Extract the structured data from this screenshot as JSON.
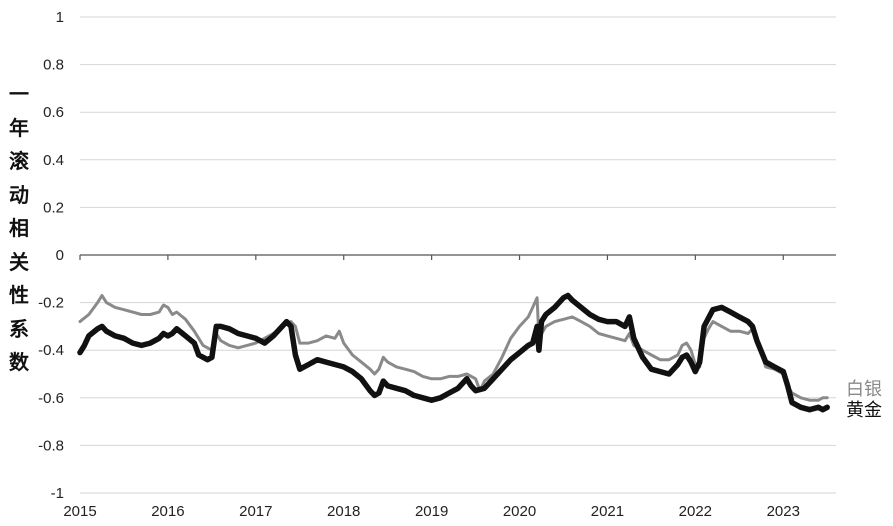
{
  "chart_data": {
    "type": "line",
    "ylabel": "一年滚动相关性系数",
    "xlabel": "",
    "title": "",
    "ylim": [
      -1,
      1
    ],
    "y_ticks": [
      "1",
      "0.8",
      "0.6",
      "0.4",
      "0.2",
      "0",
      "-0.2",
      "-0.4",
      "-0.6",
      "-0.8",
      "-1"
    ],
    "y_tick_values": [
      1,
      0.8,
      0.6,
      0.4,
      0.2,
      0,
      -0.2,
      -0.4,
      -0.6,
      -0.8,
      -1
    ],
    "x_ticks": [
      "2015",
      "2016",
      "2017",
      "2018",
      "2019",
      "2020",
      "2021",
      "2022",
      "2023"
    ],
    "x_tick_values": [
      2015,
      2016,
      2017,
      2018,
      2019,
      2020,
      2021,
      2022,
      2023
    ],
    "xlim": [
      2015,
      2023.6
    ],
    "grid": "horizontal",
    "legend": "end-of-line labels (right)",
    "series": [
      {
        "name": "白银",
        "color": "#8a8a8a",
        "points": [
          [
            2015.0,
            -0.28
          ],
          [
            2015.1,
            -0.25
          ],
          [
            2015.2,
            -0.2
          ],
          [
            2015.25,
            -0.17
          ],
          [
            2015.3,
            -0.2
          ],
          [
            2015.4,
            -0.22
          ],
          [
            2015.5,
            -0.23
          ],
          [
            2015.6,
            -0.24
          ],
          [
            2015.7,
            -0.25
          ],
          [
            2015.8,
            -0.25
          ],
          [
            2015.9,
            -0.24
          ],
          [
            2015.95,
            -0.21
          ],
          [
            2016.0,
            -0.22
          ],
          [
            2016.05,
            -0.25
          ],
          [
            2016.1,
            -0.24
          ],
          [
            2016.2,
            -0.27
          ],
          [
            2016.3,
            -0.32
          ],
          [
            2016.4,
            -0.38
          ],
          [
            2016.5,
            -0.4
          ],
          [
            2016.55,
            -0.33
          ],
          [
            2016.6,
            -0.36
          ],
          [
            2016.7,
            -0.38
          ],
          [
            2016.8,
            -0.39
          ],
          [
            2016.9,
            -0.38
          ],
          [
            2017.0,
            -0.37
          ],
          [
            2017.1,
            -0.35
          ],
          [
            2017.2,
            -0.33
          ],
          [
            2017.3,
            -0.3
          ],
          [
            2017.4,
            -0.28
          ],
          [
            2017.45,
            -0.3
          ],
          [
            2017.5,
            -0.37
          ],
          [
            2017.6,
            -0.37
          ],
          [
            2017.7,
            -0.36
          ],
          [
            2017.8,
            -0.34
          ],
          [
            2017.9,
            -0.35
          ],
          [
            2017.95,
            -0.32
          ],
          [
            2018.0,
            -0.37
          ],
          [
            2018.1,
            -0.42
          ],
          [
            2018.2,
            -0.45
          ],
          [
            2018.3,
            -0.48
          ],
          [
            2018.35,
            -0.5
          ],
          [
            2018.4,
            -0.48
          ],
          [
            2018.45,
            -0.43
          ],
          [
            2018.5,
            -0.45
          ],
          [
            2018.6,
            -0.47
          ],
          [
            2018.7,
            -0.48
          ],
          [
            2018.8,
            -0.49
          ],
          [
            2018.9,
            -0.51
          ],
          [
            2019.0,
            -0.52
          ],
          [
            2019.1,
            -0.52
          ],
          [
            2019.2,
            -0.51
          ],
          [
            2019.3,
            -0.51
          ],
          [
            2019.4,
            -0.5
          ],
          [
            2019.5,
            -0.52
          ],
          [
            2019.55,
            -0.57
          ],
          [
            2019.6,
            -0.53
          ],
          [
            2019.7,
            -0.5
          ],
          [
            2019.8,
            -0.43
          ],
          [
            2019.9,
            -0.35
          ],
          [
            2020.0,
            -0.3
          ],
          [
            2020.1,
            -0.26
          ],
          [
            2020.15,
            -0.22
          ],
          [
            2020.2,
            -0.18
          ],
          [
            2020.22,
            -0.35
          ],
          [
            2020.3,
            -0.3
          ],
          [
            2020.4,
            -0.28
          ],
          [
            2020.5,
            -0.27
          ],
          [
            2020.6,
            -0.26
          ],
          [
            2020.7,
            -0.28
          ],
          [
            2020.8,
            -0.3
          ],
          [
            2020.9,
            -0.33
          ],
          [
            2021.0,
            -0.34
          ],
          [
            2021.1,
            -0.35
          ],
          [
            2021.2,
            -0.36
          ],
          [
            2021.25,
            -0.33
          ],
          [
            2021.3,
            -0.38
          ],
          [
            2021.4,
            -0.4
          ],
          [
            2021.5,
            -0.42
          ],
          [
            2021.6,
            -0.44
          ],
          [
            2021.7,
            -0.44
          ],
          [
            2021.8,
            -0.42
          ],
          [
            2021.85,
            -0.38
          ],
          [
            2021.9,
            -0.37
          ],
          [
            2021.95,
            -0.4
          ],
          [
            2022.0,
            -0.46
          ],
          [
            2022.05,
            -0.47
          ],
          [
            2022.1,
            -0.35
          ],
          [
            2022.15,
            -0.31
          ],
          [
            2022.2,
            -0.28
          ],
          [
            2022.3,
            -0.3
          ],
          [
            2022.4,
            -0.32
          ],
          [
            2022.5,
            -0.32
          ],
          [
            2022.6,
            -0.33
          ],
          [
            2022.65,
            -0.31
          ],
          [
            2022.7,
            -0.35
          ],
          [
            2022.8,
            -0.47
          ],
          [
            2022.9,
            -0.48
          ],
          [
            2023.0,
            -0.5
          ],
          [
            2023.05,
            -0.55
          ],
          [
            2023.1,
            -0.58
          ],
          [
            2023.2,
            -0.6
          ],
          [
            2023.3,
            -0.61
          ],
          [
            2023.4,
            -0.61
          ],
          [
            2023.45,
            -0.6
          ],
          [
            2023.5,
            -0.6
          ]
        ]
      },
      {
        "name": "黄金",
        "color": "#111111",
        "points": [
          [
            2015.0,
            -0.41
          ],
          [
            2015.05,
            -0.38
          ],
          [
            2015.1,
            -0.34
          ],
          [
            2015.2,
            -0.31
          ],
          [
            2015.25,
            -0.3
          ],
          [
            2015.3,
            -0.32
          ],
          [
            2015.4,
            -0.34
          ],
          [
            2015.5,
            -0.35
          ],
          [
            2015.6,
            -0.37
          ],
          [
            2015.7,
            -0.38
          ],
          [
            2015.8,
            -0.37
          ],
          [
            2015.9,
            -0.35
          ],
          [
            2015.95,
            -0.33
          ],
          [
            2016.0,
            -0.34
          ],
          [
            2016.05,
            -0.33
          ],
          [
            2016.1,
            -0.31
          ],
          [
            2016.2,
            -0.34
          ],
          [
            2016.3,
            -0.37
          ],
          [
            2016.35,
            -0.42
          ],
          [
            2016.4,
            -0.43
          ],
          [
            2016.45,
            -0.44
          ],
          [
            2016.5,
            -0.43
          ],
          [
            2016.55,
            -0.3
          ],
          [
            2016.6,
            -0.3
          ],
          [
            2016.7,
            -0.31
          ],
          [
            2016.8,
            -0.33
          ],
          [
            2016.9,
            -0.34
          ],
          [
            2017.0,
            -0.35
          ],
          [
            2017.1,
            -0.37
          ],
          [
            2017.2,
            -0.34
          ],
          [
            2017.3,
            -0.3
          ],
          [
            2017.35,
            -0.28
          ],
          [
            2017.4,
            -0.3
          ],
          [
            2017.45,
            -0.42
          ],
          [
            2017.5,
            -0.48
          ],
          [
            2017.6,
            -0.46
          ],
          [
            2017.7,
            -0.44
          ],
          [
            2017.8,
            -0.45
          ],
          [
            2017.9,
            -0.46
          ],
          [
            2018.0,
            -0.47
          ],
          [
            2018.1,
            -0.49
          ],
          [
            2018.2,
            -0.52
          ],
          [
            2018.3,
            -0.57
          ],
          [
            2018.35,
            -0.59
          ],
          [
            2018.4,
            -0.58
          ],
          [
            2018.45,
            -0.53
          ],
          [
            2018.5,
            -0.55
          ],
          [
            2018.6,
            -0.56
          ],
          [
            2018.7,
            -0.57
          ],
          [
            2018.8,
            -0.59
          ],
          [
            2018.9,
            -0.6
          ],
          [
            2019.0,
            -0.61
          ],
          [
            2019.1,
            -0.6
          ],
          [
            2019.2,
            -0.58
          ],
          [
            2019.3,
            -0.56
          ],
          [
            2019.4,
            -0.52
          ],
          [
            2019.45,
            -0.55
          ],
          [
            2019.5,
            -0.57
          ],
          [
            2019.6,
            -0.56
          ],
          [
            2019.7,
            -0.52
          ],
          [
            2019.8,
            -0.48
          ],
          [
            2019.9,
            -0.44
          ],
          [
            2020.0,
            -0.41
          ],
          [
            2020.1,
            -0.38
          ],
          [
            2020.15,
            -0.37
          ],
          [
            2020.2,
            -0.3
          ],
          [
            2020.22,
            -0.4
          ],
          [
            2020.25,
            -0.28
          ],
          [
            2020.3,
            -0.25
          ],
          [
            2020.4,
            -0.22
          ],
          [
            2020.5,
            -0.18
          ],
          [
            2020.55,
            -0.17
          ],
          [
            2020.6,
            -0.19
          ],
          [
            2020.7,
            -0.22
          ],
          [
            2020.8,
            -0.25
          ],
          [
            2020.9,
            -0.27
          ],
          [
            2021.0,
            -0.28
          ],
          [
            2021.1,
            -0.28
          ],
          [
            2021.2,
            -0.3
          ],
          [
            2021.25,
            -0.26
          ],
          [
            2021.3,
            -0.35
          ],
          [
            2021.4,
            -0.43
          ],
          [
            2021.5,
            -0.48
          ],
          [
            2021.6,
            -0.49
          ],
          [
            2021.7,
            -0.5
          ],
          [
            2021.8,
            -0.46
          ],
          [
            2021.85,
            -0.43
          ],
          [
            2021.9,
            -0.42
          ],
          [
            2021.95,
            -0.45
          ],
          [
            2022.0,
            -0.49
          ],
          [
            2022.05,
            -0.45
          ],
          [
            2022.1,
            -0.3
          ],
          [
            2022.2,
            -0.23
          ],
          [
            2022.3,
            -0.22
          ],
          [
            2022.4,
            -0.24
          ],
          [
            2022.5,
            -0.26
          ],
          [
            2022.6,
            -0.28
          ],
          [
            2022.65,
            -0.3
          ],
          [
            2022.7,
            -0.36
          ],
          [
            2022.8,
            -0.45
          ],
          [
            2022.9,
            -0.47
          ],
          [
            2023.0,
            -0.49
          ],
          [
            2023.05,
            -0.55
          ],
          [
            2023.1,
            -0.62
          ],
          [
            2023.2,
            -0.64
          ],
          [
            2023.3,
            -0.65
          ],
          [
            2023.4,
            -0.64
          ],
          [
            2023.45,
            -0.65
          ],
          [
            2023.5,
            -0.64
          ]
        ]
      }
    ]
  }
}
